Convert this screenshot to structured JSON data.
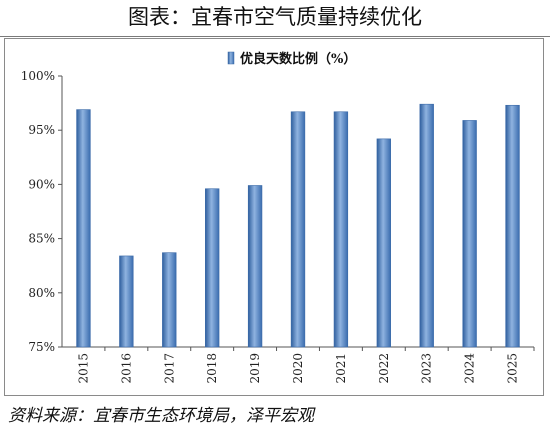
{
  "header": {
    "title": "图表：宜春市空气质量持续优化"
  },
  "footer": {
    "source": "资料来源：宜春市生态环境局，泽平宏观"
  },
  "colors": {
    "bar": "#4f81bd",
    "bar_light": "#8fb3e0",
    "bar_dark": "#2f5f9e"
  },
  "chart_data": {
    "type": "bar",
    "title": "",
    "xlabel": "",
    "ylabel": "",
    "categories": [
      "2015",
      "2016",
      "2017",
      "2018",
      "2019",
      "2020",
      "2021",
      "2022",
      "2023",
      "2024",
      "2025"
    ],
    "series": [
      {
        "name": "优良天数比例（%）",
        "values": [
          96.9,
          83.4,
          83.7,
          89.6,
          89.9,
          96.7,
          96.7,
          94.2,
          97.4,
          95.9,
          97.3
        ]
      }
    ],
    "ylim": [
      75,
      100
    ],
    "yticks": [
      "75%",
      "80%",
      "85%",
      "90%",
      "95%",
      "100%"
    ],
    "ytick_values": [
      75,
      80,
      85,
      90,
      95,
      100
    ],
    "grid": false,
    "legend_position": "top-center"
  }
}
